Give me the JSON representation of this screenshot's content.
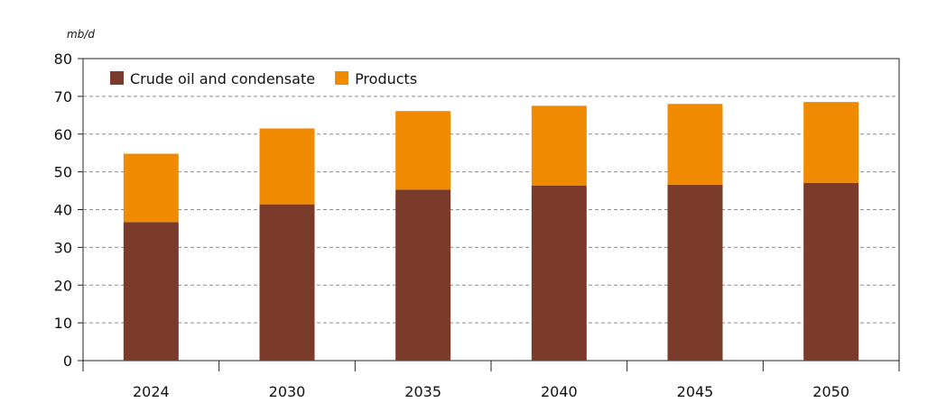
{
  "chart_data": {
    "type": "bar",
    "stacked": true,
    "unit_label": "mb/d",
    "categories": [
      "2024",
      "2030",
      "2035",
      "2040",
      "2045",
      "2050"
    ],
    "series": [
      {
        "name": "Crude oil and condensate",
        "color": "#7a3b2a",
        "values": [
          36.7,
          41.4,
          45.3,
          46.4,
          46.6,
          47.1
        ]
      },
      {
        "name": "Products",
        "color": "#f08a00",
        "values": [
          18.1,
          20.1,
          20.8,
          21.1,
          21.4,
          21.4
        ]
      }
    ],
    "ylim": [
      0,
      80
    ],
    "yticks": [
      0,
      10,
      20,
      30,
      40,
      50,
      60,
      70,
      80
    ],
    "grid": "dashed horizontal",
    "legend_position": "top-left inside"
  }
}
